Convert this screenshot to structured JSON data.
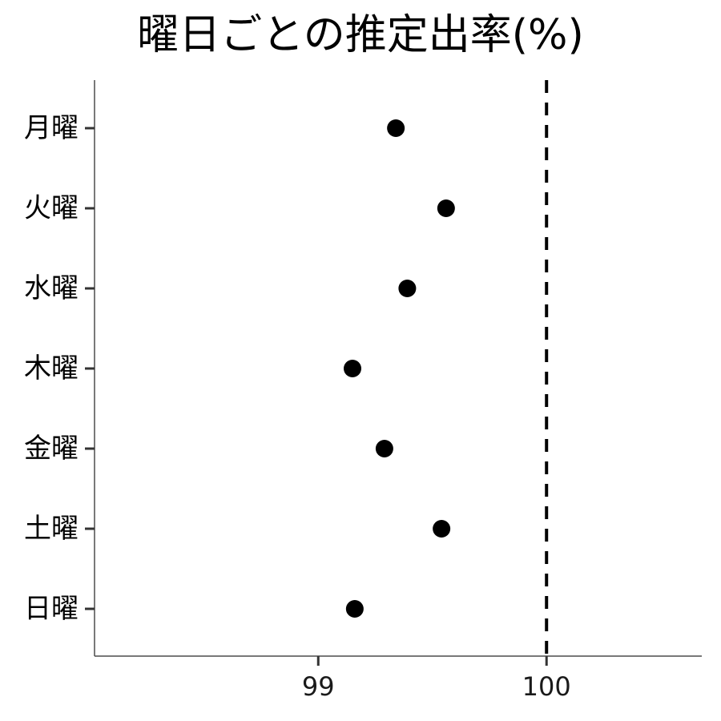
{
  "chart_data": {
    "type": "scatter",
    "title": "曜日ごとの推定出率(%)",
    "xlabel": "",
    "ylabel": "",
    "categories": [
      "月曜",
      "火曜",
      "水曜",
      "木曜",
      "金曜",
      "土曜",
      "日曜"
    ],
    "values": [
      99.34,
      99.56,
      99.39,
      99.15,
      99.29,
      99.54,
      99.16
    ],
    "xlim": [
      98.02,
      100.68
    ],
    "xticks": [
      99,
      100
    ],
    "xtick_labels": [
      "99",
      "100"
    ],
    "reference_line": {
      "x": 100,
      "style": "dashed",
      "color": "#000000"
    },
    "point_color": "#000000",
    "grid": false,
    "legend": "none"
  }
}
